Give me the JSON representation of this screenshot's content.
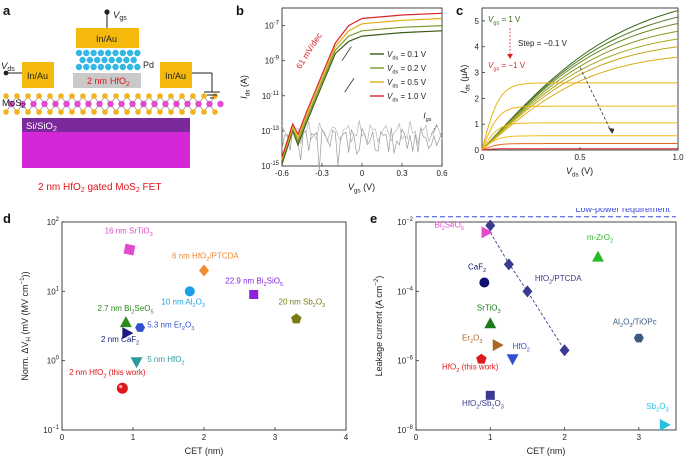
{
  "panels": {
    "a": {
      "label": "a",
      "gate_metal": "In/Au",
      "source_metal": "In/Au",
      "drain_metal": "In/Au",
      "pd": "Pd",
      "dielectric_pre": "2 nm",
      "dielectric": "HfO",
      "dielectric_sub": "2",
      "vgs": "V",
      "vgs_sub": "gs",
      "vds": "V",
      "vds_sub": "ds",
      "channel": "MoS",
      "channel_sub": "2",
      "substrate": "Si/SiO",
      "substrate_sub": "2",
      "caption_pre": "2 nm HfO",
      "caption_sub": "2",
      "caption_post": " gated MoS",
      "caption_sub2": "2",
      "caption_end": " FET",
      "colors": {
        "gold": "#f5b80c",
        "pink": "#e04ccd",
        "purple": "#7a2a9a",
        "magenta": "#d427d8",
        "gray": "#c9c9c9",
        "cyan": "#33b8e6"
      }
    },
    "b": {
      "label": "b"
    },
    "c": {
      "label": "c"
    },
    "d": {
      "label": "d"
    },
    "e": {
      "label": "e"
    }
  },
  "chart_data": [
    {
      "panel": "b",
      "type": "line",
      "xlabel": "V",
      "xlabel_sub": "gs",
      "xlabel_unit": " (V)",
      "ylabel": "I",
      "ylabel_sub": "ds",
      "ylabel_unit": " (A)",
      "xlim": [
        -0.6,
        0.6
      ],
      "ylim_log10": [
        -15,
        -6
      ],
      "log_y": true,
      "x_ticks": [
        "-0.6",
        "-0.3",
        "0",
        "0.3",
        "0.6"
      ],
      "y_ticks": [
        {
          "base": "10",
          "exp": "-15"
        },
        {
          "base": "10",
          "exp": "-13"
        },
        {
          "base": "10",
          "exp": "-11"
        },
        {
          "base": "10",
          "exp": "-9"
        },
        {
          "base": "10",
          "exp": "-7"
        }
      ],
      "annotation": "61 mV/dec",
      "igs_label": "I",
      "igs_sub": "gs",
      "legend_placement": "right",
      "series": [
        {
          "name": "V",
          "name_sub": "ds",
          "name_post": " = 0.1 V",
          "color": "#3a5a14",
          "x": [
            -0.6,
            -0.52,
            -0.48,
            -0.42,
            -0.3,
            -0.2,
            -0.1,
            0,
            0.3,
            0.6
          ],
          "log10_y": [
            -14.9,
            -13.0,
            -13.8,
            -12.6,
            -10.4,
            -8.6,
            -7.9,
            -7.6,
            -7.4,
            -7.3
          ]
        },
        {
          "name": "V",
          "name_sub": "ds",
          "name_post": " = 0.2 V",
          "color": "#7a9a2a",
          "x": [
            -0.6,
            -0.52,
            -0.48,
            -0.42,
            -0.3,
            -0.2,
            -0.1,
            0,
            0.3,
            0.6
          ],
          "log10_y": [
            -14.7,
            -12.9,
            -13.6,
            -12.4,
            -10.2,
            -8.4,
            -7.6,
            -7.3,
            -7.1,
            -7.0
          ]
        },
        {
          "name": "V",
          "name_sub": "ds",
          "name_post": " = 0.5 V",
          "color": "#e0b010",
          "x": [
            -0.6,
            -0.52,
            -0.48,
            -0.42,
            -0.3,
            -0.2,
            -0.1,
            0,
            0.3,
            0.6
          ],
          "log10_y": [
            -14.6,
            -12.8,
            -13.4,
            -12.2,
            -10.0,
            -8.2,
            -7.3,
            -6.9,
            -6.7,
            -6.6
          ]
        },
        {
          "name": "V",
          "name_sub": "ds",
          "name_post": " = 1.0 V",
          "color": "#d8262b",
          "x": [
            -0.6,
            -0.52,
            -0.48,
            -0.42,
            -0.3,
            -0.2,
            -0.1,
            0,
            0.3,
            0.6
          ],
          "log10_y": [
            -14.5,
            -12.6,
            -13.2,
            -12.0,
            -9.8,
            -8.0,
            -7.0,
            -6.6,
            -6.4,
            -6.3
          ]
        }
      ]
    },
    {
      "panel": "c",
      "type": "line",
      "xlabel": "V",
      "xlabel_sub": "ds",
      "xlabel_unit": " (V)",
      "ylabel": "I",
      "ylabel_sub": "ds",
      "ylabel_unit": " (μA)",
      "xlim": [
        0,
        1.0
      ],
      "ylim": [
        0,
        5.5
      ],
      "x_ticks": [
        "0",
        "0.5",
        "1.0"
      ],
      "y_ticks": [
        "0",
        "1",
        "2",
        "3",
        "4",
        "5"
      ],
      "step_label": "Step = −0.1 V",
      "vgs_top": "V",
      "vgs_top_sub": "gs",
      "vgs_top_post": " = 1 V",
      "vgs_bot": "V",
      "vgs_bot_sub": "gs",
      "vgs_bot_post": " = −1 V",
      "series": [
        {
          "vgs": 1.0,
          "sat": 5.4,
          "color": "#3a6a1a"
        },
        {
          "vgs": 0.9,
          "sat": 5.15,
          "color": "#4f7a22"
        },
        {
          "vgs": 0.8,
          "sat": 4.9,
          "color": "#6a8a24"
        },
        {
          "vgs": 0.7,
          "sat": 4.6,
          "color": "#8a9a22"
        },
        {
          "vgs": 0.6,
          "sat": 4.3,
          "color": "#a8a61e"
        },
        {
          "vgs": 0.5,
          "sat": 4.0,
          "color": "#c2a81a"
        },
        {
          "vgs": 0.4,
          "sat": 3.6,
          "color": "#d8ae16"
        },
        {
          "vgs": 0.3,
          "sat": 2.6,
          "color": "#e6b412"
        },
        {
          "vgs": 0.2,
          "sat": 1.7,
          "color": "#ebb814"
        },
        {
          "vgs": 0.1,
          "sat": 1.05,
          "color": "#eebc1a"
        },
        {
          "vgs": 0.0,
          "sat": 0.55,
          "color": "#efbf22"
        },
        {
          "vgs": -0.1,
          "sat": 0.25,
          "color": "#e86a1f"
        },
        {
          "vgs": -1.0,
          "sat": 0.05,
          "color": "#d8262b"
        }
      ]
    },
    {
      "panel": "d",
      "type": "scatter",
      "xlabel": "CET (nm)",
      "ylabel": "Norm. ΔV",
      "ylabel_sub": "H",
      "ylabel_unit": " (mV (MV cm",
      "ylabel_exp": "−1",
      "ylabel_close": "))",
      "xlim": [
        0,
        4
      ],
      "ylim_log10": [
        -1,
        2
      ],
      "log_y": true,
      "x_ticks": [
        "0",
        "1",
        "2",
        "3",
        "4"
      ],
      "y_ticks": [
        {
          "base": "10",
          "exp": "−1"
        },
        {
          "base": "10",
          "exp": "0"
        },
        {
          "base": "10",
          "exp": "1"
        },
        {
          "base": "10",
          "exp": "2"
        }
      ],
      "points": [
        {
          "label": "16 nm SrTiO",
          "sub": "3",
          "x": 0.95,
          "y": 40,
          "shape": "square-rot",
          "color": "#e04ccd",
          "lx": 0.6,
          "ly": 68
        },
        {
          "label": "6 nm HfO",
          "sub": "2",
          "post": "/PTCDA",
          "x": 2.0,
          "y": 20,
          "shape": "diamond",
          "color": "#f08a30",
          "lx": 1.55,
          "ly": 30
        },
        {
          "label": "22.9 nm Bi",
          "sub": "2",
          "post": "SiO",
          "sub2": "5",
          "x": 2.7,
          "y": 9,
          "shape": "square",
          "color": "#8a22e0",
          "lx": 2.3,
          "ly": 13
        },
        {
          "label": "10 nm Al",
          "sub": "2",
          "post": "O",
          "sub2": "3",
          "x": 1.8,
          "y": 10,
          "shape": "circle",
          "color": "#1aa0e6",
          "lx": 1.4,
          "ly": 6.5
        },
        {
          "label": "20 nm Sb",
          "sub": "2",
          "post": "O",
          "sub2": "3",
          "x": 3.3,
          "y": 4,
          "shape": "pentagon",
          "color": "#7a7a16",
          "lx": 3.05,
          "ly": 6.5
        },
        {
          "label": "2.7 nm Bi",
          "sub": "2",
          "post": "SeO",
          "sub2": "5",
          "x": 0.9,
          "y": 3.6,
          "shape": "triangle-up",
          "color": "#2a8a1a",
          "lx": 0.5,
          "ly": 5.2
        },
        {
          "label": "5.3 nm Er",
          "sub": "2",
          "post": "O",
          "sub2": "3",
          "x": 1.1,
          "y": 3.0,
          "shape": "hexagon",
          "color": "#3050d0",
          "lx": 1.2,
          "ly": 3.0
        },
        {
          "label": "2 nm CaF",
          "sub": "2",
          "post": "",
          "x": 0.92,
          "y": 2.5,
          "shape": "triangle-right",
          "color": "#1a1a80",
          "lx": 0.55,
          "ly": 1.85
        },
        {
          "label": "5 nm HfO",
          "sub": "2",
          "post": "",
          "x": 1.05,
          "y": 0.95,
          "shape": "triangle-down",
          "color": "#2a9a9a",
          "lx": 1.2,
          "ly": 0.95
        },
        {
          "label": "2 nm HfO",
          "sub": "2",
          "post": " (this work)",
          "x": 0.85,
          "y": 0.4,
          "shape": "sphere",
          "color": "#e0161a",
          "lx": 0.1,
          "ly": 0.62
        }
      ]
    },
    {
      "panel": "e",
      "type": "scatter",
      "xlabel": "CET (nm)",
      "ylabel": "Leakage current (A cm",
      "ylabel_exp": "−2",
      "ylabel_close": ")",
      "xlim": [
        0,
        3.5
      ],
      "ylim_log10": [
        -8,
        -2
      ],
      "log_y": true,
      "x_ticks": [
        "0",
        "1",
        "2",
        "3"
      ],
      "y_ticks": [
        {
          "base": "10",
          "exp": "−8"
        },
        {
          "base": "10",
          "exp": "−6"
        },
        {
          "base": "10",
          "exp": "−4"
        },
        {
          "base": "10",
          "exp": "−2"
        }
      ],
      "requirement_label": "Low-power requirement",
      "requirement_log10": -1.85,
      "dashed_fit": [
        {
          "x": 1.0,
          "log10_y": -2.3
        },
        {
          "x": 1.25,
          "log10_y": -3.2
        },
        {
          "x": 1.5,
          "log10_y": -4.0
        },
        {
          "x": 2.0,
          "log10_y": -5.7
        }
      ],
      "points": [
        {
          "label": "Bi",
          "sub": "2",
          "post": "SeO",
          "sub2": "5",
          "x": 0.95,
          "y": 0.005,
          "shape": "triangle-right",
          "color": "#e04ccd",
          "lx": 0.25,
          "ly": 0.007
        },
        {
          "label": "",
          "x": 1.0,
          "y": 0.0079,
          "shape": "diamond",
          "color": "#3a3a90"
        },
        {
          "label": "",
          "x": 1.25,
          "y": 0.0006,
          "shape": "diamond",
          "color": "#3a3a90"
        },
        {
          "label": "HfO",
          "sub": "2",
          "post": "/PTCDA",
          "x": 1.5,
          "y": 0.0001,
          "shape": "diamond",
          "color": "#3a3a90",
          "lx": 1.6,
          "ly": 0.0002
        },
        {
          "label": "",
          "x": 2.0,
          "y": 2e-06,
          "shape": "diamond",
          "color": "#3a3a90"
        },
        {
          "label": "CaF",
          "sub": "2",
          "post": "",
          "x": 0.92,
          "y": 0.00018,
          "shape": "circle",
          "color": "#101070",
          "lx": 0.7,
          "ly": 0.00042
        },
        {
          "label": "m-ZrO",
          "sub": "2",
          "post": "",
          "x": 2.45,
          "y": 0.001,
          "shape": "triangle-up",
          "color": "#2ab82a",
          "lx": 2.3,
          "ly": 0.003
        },
        {
          "label": "SrTiO",
          "sub": "3",
          "post": "",
          "x": 1.0,
          "y": 1.2e-05,
          "shape": "triangle-up",
          "color": "#1a7a1a",
          "lx": 0.82,
          "ly": 2.8e-05
        },
        {
          "label": "Er",
          "sub": "2",
          "post": "O",
          "sub2": "3",
          "x": 1.1,
          "y": 2.8e-06,
          "shape": "triangle-right",
          "color": "#a86a22",
          "lx": 0.62,
          "ly": 3.8e-06
        },
        {
          "label": "HfO",
          "sub": "2",
          "post": "",
          "x": 1.3,
          "y": 1.1e-06,
          "shape": "triangle-down",
          "color": "#3050d0",
          "lx": 1.3,
          "ly": 2.2e-06
        },
        {
          "label": "HfO",
          "sub": "2",
          "post": " (this work)",
          "x": 0.88,
          "y": 1.1e-06,
          "shape": "pentagon",
          "color": "#e01a1a",
          "lx": 0.35,
          "ly": 5.5e-07
        },
        {
          "label": "Al",
          "sub": "2",
          "post": "O",
          "sub2": "3",
          "post2": "/TiOPc",
          "x": 3.0,
          "y": 4.5e-06,
          "shape": "hexagon",
          "color": "#3a5a80",
          "lx": 2.65,
          "ly": 1.1e-05
        },
        {
          "label": "HfO",
          "sub": "2",
          "post": "/Sb",
          "sub2": "2",
          "post2": "O",
          "sub3": "3",
          "x": 1.0,
          "y": 1e-07,
          "shape": "square",
          "color": "#3a3a90",
          "lx": 0.62,
          "ly": 5e-08
        },
        {
          "label": "Sb",
          "sub": "2",
          "post": "O",
          "sub2": "3",
          "x": 3.35,
          "y": 1.4e-08,
          "shape": "triangle-right",
          "color": "#2ac0e0",
          "lx": 3.1,
          "ly": 4e-08
        }
      ]
    }
  ]
}
